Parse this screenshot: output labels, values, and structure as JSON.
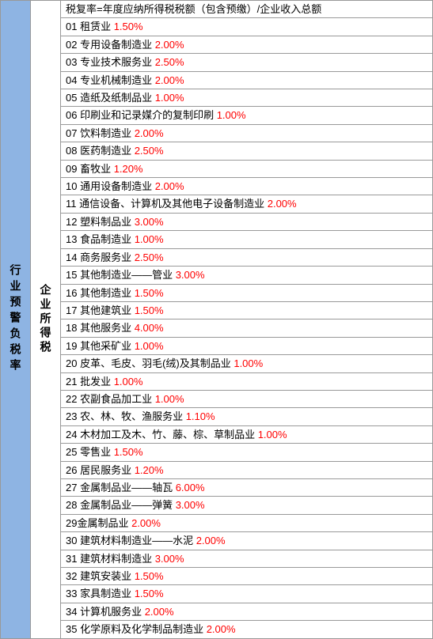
{
  "column1_label": "行业预警负税率",
  "column2_label": "企业所得税",
  "formula": "税复率=年度应纳所得税税额（包含预缴）/企业收入总额",
  "rows": [
    {
      "num": "01",
      "name": "租赁业",
      "rate": "1.50%"
    },
    {
      "num": "02",
      "name": "专用设备制造业",
      "rate": "2.00%"
    },
    {
      "num": "03",
      "name": "专业技术服务业",
      "rate": "2.50%"
    },
    {
      "num": "04",
      "name": "专业机械制造业",
      "rate": "2.00%"
    },
    {
      "num": "05",
      "name": "造纸及纸制品业",
      "rate": "1.00%"
    },
    {
      "num": "06",
      "name": "印刷业和记录媒介的复制印刷",
      "rate": "1.00%"
    },
    {
      "num": "07",
      "name": "饮料制造业",
      "rate": "2.00%"
    },
    {
      "num": "08",
      "name": "医药制造业",
      "rate": "2.50%"
    },
    {
      "num": "09",
      "name": "畜牧业",
      "rate": "1.20%"
    },
    {
      "num": "10",
      "name": "通用设备制造业",
      "rate": "2.00%"
    },
    {
      "num": "11",
      "name": "通信设备、计算机及其他电子设备制造业",
      "rate": "2.00%"
    },
    {
      "num": "12",
      "name": "塑料制品业",
      "rate": "3.00%"
    },
    {
      "num": "13",
      "name": "食品制造业",
      "rate": "1.00%"
    },
    {
      "num": "14",
      "name": "商务服务业",
      "rate": "2.50%"
    },
    {
      "num": "15",
      "name": "其他制造业——管业",
      "rate": "3.00%"
    },
    {
      "num": "16",
      "name": "其他制造业",
      "rate": "1.50%"
    },
    {
      "num": "17",
      "name": "其他建筑业",
      "rate": "1.50%"
    },
    {
      "num": "18",
      "name": "其他服务业",
      "rate": "4.00%"
    },
    {
      "num": "19",
      "name": "其他采矿业",
      "rate": "1.00%"
    },
    {
      "num": "20",
      "name": "皮革、毛皮、羽毛(绒)及其制品业",
      "rate": "1.00%"
    },
    {
      "num": "21",
      "name": "批发业",
      "rate": "1.00%"
    },
    {
      "num": "22",
      "name": "农副食品加工业",
      "rate": "1.00%"
    },
    {
      "num": "23",
      "name": "农、林、牧、渔服务业",
      "rate": "1.10%"
    },
    {
      "num": "24",
      "name": "木材加工及木、竹、藤、棕、草制品业",
      "rate": "1.00%"
    },
    {
      "num": "25",
      "name": "零售业",
      "rate": "1.50%"
    },
    {
      "num": "26",
      "name": "居民服务业",
      "rate": "1.20%"
    },
    {
      "num": "27",
      "name": "金属制品业——轴瓦",
      "rate": "6.00%"
    },
    {
      "num": "28",
      "name": "金属制品业——弹簧",
      "rate": "3.00%"
    },
    {
      "num": "29",
      "name": "金属制品业",
      "rate": "2.00%",
      "nospace": true
    },
    {
      "num": "30",
      "name": "建筑材料制造业——水泥",
      "rate": "2.00%"
    },
    {
      "num": "31",
      "name": "建筑材料制造业",
      "rate": "3.00%"
    },
    {
      "num": "32",
      "name": "建筑安装业",
      "rate": "1.50%"
    },
    {
      "num": "33",
      "name": "家具制造业",
      "rate": "1.50%"
    },
    {
      "num": "34",
      "name": "计算机服务业",
      "rate": "2.00%"
    },
    {
      "num": "35",
      "name": "化学原料及化学制品制造业",
      "rate": "2.00%"
    }
  ],
  "colors": {
    "col1_bg": "#8eb4e3",
    "border": "#999999",
    "text": "#000000",
    "rate": "#ff0000",
    "bg": "#ffffff"
  }
}
